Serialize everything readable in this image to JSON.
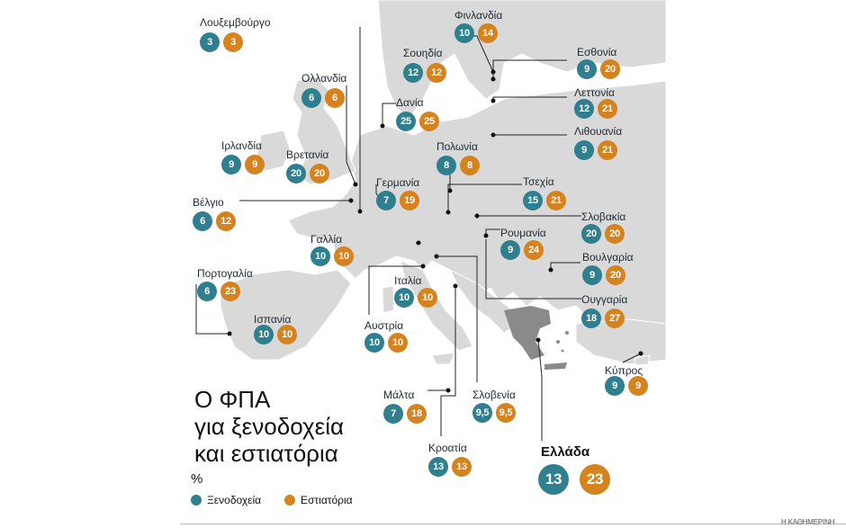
{
  "title": {
    "line1": "Ο ΦΠΑ",
    "line2": "για ξενοδοχεία",
    "line3": "και εστιατόρια"
  },
  "unit": "%",
  "legend": {
    "hotels": "Ξενοδοχεία",
    "restaurants": "Εστιατόρια"
  },
  "colors": {
    "hotels": "#2f7f8f",
    "restaurants": "#d4831f",
    "land": "#d9d9d9",
    "greece": "#8a8a8a"
  },
  "greece": {
    "name": "Ελλάδα",
    "hotels": "13",
    "restaurants": "23"
  },
  "credit": "Η ΚΑΘΗΜΕΡΙΝΗ",
  "countries": [
    {
      "key": "luxembourg",
      "name": "Λουξεμβούργο",
      "hotels": "3",
      "restaurants": "3"
    },
    {
      "key": "finland",
      "name": "Φινλανδία",
      "hotels": "10",
      "restaurants": "14"
    },
    {
      "key": "sweden",
      "name": "Σουηδία",
      "hotels": "12",
      "restaurants": "12"
    },
    {
      "key": "estonia",
      "name": "Εσθονία",
      "hotels": "9",
      "restaurants": "20"
    },
    {
      "key": "netherlands",
      "name": "Ολλανδία",
      "hotels": "6",
      "restaurants": "6"
    },
    {
      "key": "denmark",
      "name": "Δανία",
      "hotels": "25",
      "restaurants": "25"
    },
    {
      "key": "latvia",
      "name": "Λεττονία",
      "hotels": "12",
      "restaurants": "21"
    },
    {
      "key": "ireland",
      "name": "Ιρλανδία",
      "hotels": "9",
      "restaurants": "9"
    },
    {
      "key": "uk",
      "name": "Βρετανία",
      "hotels": "20",
      "restaurants": "20"
    },
    {
      "key": "poland",
      "name": "Πολωνία",
      "hotels": "8",
      "restaurants": "8"
    },
    {
      "key": "lithuania",
      "name": "Λιθουανία",
      "hotels": "9",
      "restaurants": "21"
    },
    {
      "key": "belgium",
      "name": "Βέλγιο",
      "hotels": "6",
      "restaurants": "12"
    },
    {
      "key": "germany",
      "name": "Γερμανία",
      "hotels": "7",
      "restaurants": "19"
    },
    {
      "key": "czechia",
      "name": "Τσεχία",
      "hotels": "15",
      "restaurants": "21"
    },
    {
      "key": "france",
      "name": "Γαλλία",
      "hotels": "10",
      "restaurants": "10"
    },
    {
      "key": "slovakia",
      "name": "Σλοβακία",
      "hotels": "20",
      "restaurants": "20"
    },
    {
      "key": "romania",
      "name": "Ρουμανία",
      "hotels": "9",
      "restaurants": "24"
    },
    {
      "key": "portugal",
      "name": "Πορτογαλία",
      "hotels": "6",
      "restaurants": "23"
    },
    {
      "key": "bulgaria",
      "name": "Βουλγαρία",
      "hotels": "9",
      "restaurants": "20"
    },
    {
      "key": "italy",
      "name": "Ιταλία",
      "hotels": "10",
      "restaurants": "10"
    },
    {
      "key": "hungary",
      "name": "Ουγγαρία",
      "hotels": "18",
      "restaurants": "27"
    },
    {
      "key": "spain",
      "name": "Ισπανία",
      "hotels": "10",
      "restaurants": "10"
    },
    {
      "key": "austria",
      "name": "Αυστρία",
      "hotels": "10",
      "restaurants": "10"
    },
    {
      "key": "cyprus",
      "name": "Κύπρος",
      "hotels": "9",
      "restaurants": "9"
    },
    {
      "key": "malta",
      "name": "Μάλτα",
      "hotels": "7",
      "restaurants": "18"
    },
    {
      "key": "slovenia",
      "name": "Σλοβενία",
      "hotels": "9,5",
      "restaurants": "9,5"
    },
    {
      "key": "croatia",
      "name": "Κροατία",
      "hotels": "13",
      "restaurants": "13"
    }
  ]
}
